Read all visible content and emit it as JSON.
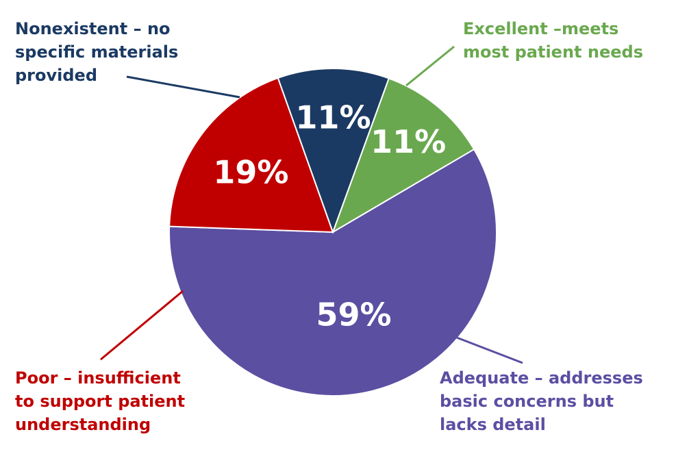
{
  "chart_data": {
    "type": "pie",
    "slices": [
      {
        "category": "Excellent –meets most patient needs",
        "value": 11,
        "value_label": "11%",
        "color": "#6aa84f",
        "label_lines": [
          "Excellent –meets",
          "most patient needs"
        ]
      },
      {
        "category": "Adequate – addresses basic concerns but lacks detail",
        "value": 59,
        "value_label": "59%",
        "color": "#5b4fa2",
        "label_lines": [
          "Adequate – addresses",
          "basic concerns but",
          "lacks detail"
        ]
      },
      {
        "category": "Poor – insufficient to support patient understanding",
        "value": 19,
        "value_label": "19%",
        "color": "#c00000",
        "label_lines": [
          "Poor – insufficient",
          "to support patient",
          "understanding"
        ]
      },
      {
        "category": "Nonexistent – no specific materials provided",
        "value": 11,
        "value_label": "11%",
        "color": "#1b3a63",
        "label_lines": [
          "Nonexistent – no",
          "specific materials",
          "provided"
        ]
      }
    ],
    "start_angle_deg": 20,
    "direction": "clockwise",
    "legend": "none (direct callout labels)"
  }
}
